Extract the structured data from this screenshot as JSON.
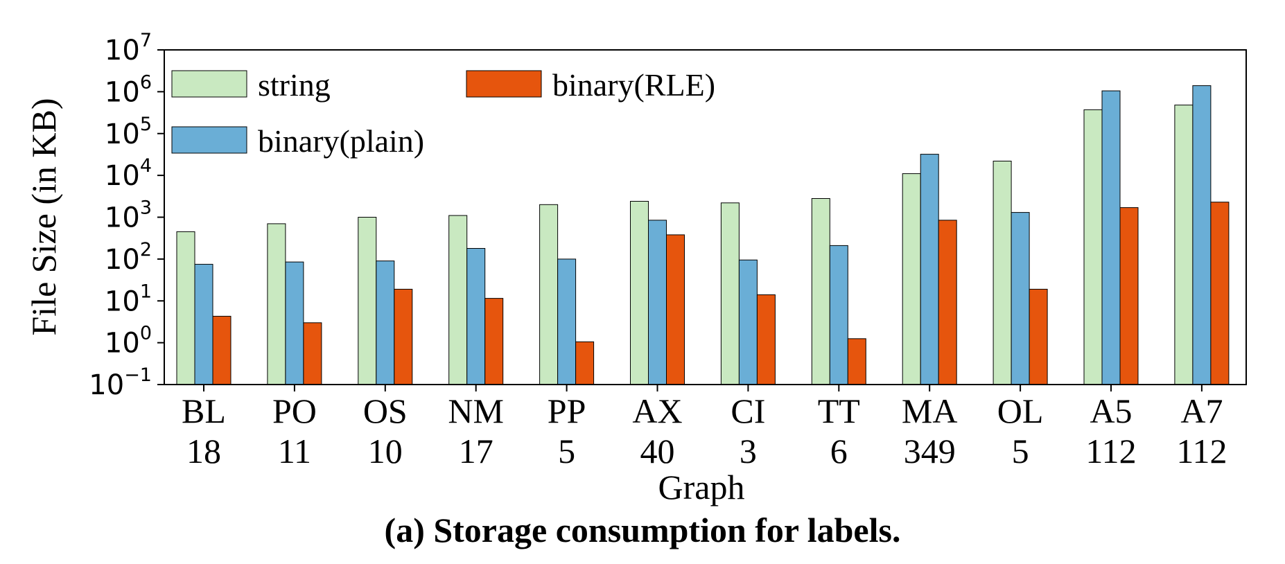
{
  "caption": "(a) Storage consumption for labels.",
  "chart_data": {
    "type": "bar",
    "ylabel": "File Size (in KB)",
    "xlabel": "Graph",
    "yscale": "log",
    "ylim": [
      0.1,
      10000000
    ],
    "ytick_values": [
      0.1,
      1,
      10,
      100,
      1000,
      10000,
      100000,
      1000000,
      10000000
    ],
    "ytick_labels": [
      {
        "base": "10",
        "exp": "−1"
      },
      {
        "base": "10",
        "exp": "0"
      },
      {
        "base": "10",
        "exp": "1"
      },
      {
        "base": "10",
        "exp": "2"
      },
      {
        "base": "10",
        "exp": "3"
      },
      {
        "base": "10",
        "exp": "4"
      },
      {
        "base": "10",
        "exp": "5"
      },
      {
        "base": "10",
        "exp": "6"
      },
      {
        "base": "10",
        "exp": "7"
      }
    ],
    "categories": [
      {
        "name": "BL",
        "sub": "18"
      },
      {
        "name": "PO",
        "sub": "11"
      },
      {
        "name": "OS",
        "sub": "10"
      },
      {
        "name": "NM",
        "sub": "17"
      },
      {
        "name": "PP",
        "sub": "5"
      },
      {
        "name": "AX",
        "sub": "40"
      },
      {
        "name": "CI",
        "sub": "3"
      },
      {
        "name": "TT",
        "sub": "6"
      },
      {
        "name": "MA",
        "sub": "349"
      },
      {
        "name": "OL",
        "sub": "5"
      },
      {
        "name": "A5",
        "sub": "112"
      },
      {
        "name": "A7",
        "sub": "112"
      }
    ],
    "series": [
      {
        "name": "string",
        "color": "#c9e9c1",
        "values": [
          450,
          700,
          1000,
          1100,
          2000,
          2400,
          2200,
          2800,
          11000,
          22000,
          370000,
          480000
        ]
      },
      {
        "name": "binary(plain)",
        "color": "#6aaed6",
        "values": [
          75,
          85,
          90,
          180,
          100,
          850,
          95,
          210,
          32000,
          1300,
          1050000,
          1400000
        ]
      },
      {
        "name": "binary(RLE)",
        "color": "#e6550d",
        "values": [
          4.3,
          3.0,
          19,
          11.5,
          1.05,
          380,
          14,
          1.25,
          850,
          19,
          1700,
          2300
        ]
      }
    ],
    "legend": {
      "placement": "top-left",
      "order": [
        "string",
        "binary(RLE)",
        "binary(plain)"
      ]
    },
    "grid": false
  }
}
